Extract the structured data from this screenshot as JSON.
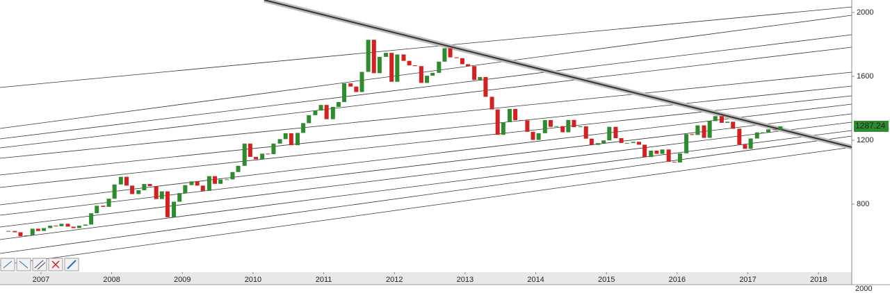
{
  "chart_data": {
    "type": "candlestick",
    "x": [
      2006.54,
      2006.63,
      2006.71,
      2006.79,
      2006.88,
      2006.96,
      2007.04,
      2007.13,
      2007.21,
      2007.29,
      2007.38,
      2007.46,
      2007.54,
      2007.63,
      2007.71,
      2007.79,
      2007.88,
      2007.96,
      2008.04,
      2008.13,
      2008.21,
      2008.29,
      2008.38,
      2008.46,
      2008.54,
      2008.63,
      2008.71,
      2008.79,
      2008.88,
      2008.96,
      2009.04,
      2009.13,
      2009.21,
      2009.29,
      2009.38,
      2009.46,
      2009.54,
      2009.63,
      2009.71,
      2009.79,
      2009.88,
      2009.96,
      2010.04,
      2010.13,
      2010.21,
      2010.29,
      2010.38,
      2010.46,
      2010.54,
      2010.63,
      2010.71,
      2010.79,
      2010.88,
      2010.96,
      2011.04,
      2011.13,
      2011.21,
      2011.29,
      2011.38,
      2011.46,
      2011.54,
      2011.63,
      2011.71,
      2011.79,
      2011.88,
      2011.96,
      2012.04,
      2012.13,
      2012.21,
      2012.29,
      2012.38,
      2012.46,
      2012.54,
      2012.63,
      2012.71,
      2012.79,
      2012.88,
      2012.96,
      2013.04,
      2013.13,
      2013.21,
      2013.29,
      2013.38,
      2013.46,
      2013.54,
      2013.63,
      2013.71,
      2013.79,
      2013.88,
      2013.96,
      2014.04,
      2014.13,
      2014.21,
      2014.29,
      2014.38,
      2014.46,
      2014.54,
      2014.63,
      2014.71,
      2014.79,
      2014.88,
      2014.96,
      2015.04,
      2015.13,
      2015.21,
      2015.29,
      2015.38,
      2015.46,
      2015.54,
      2015.63,
      2015.71,
      2015.79,
      2015.88,
      2015.96,
      2016.04,
      2016.13,
      2016.21,
      2016.29,
      2016.38,
      2016.46,
      2016.54,
      2016.63,
      2016.71,
      2016.79,
      2016.88,
      2016.96,
      2017.04,
      2017.13,
      2017.21,
      2017.29,
      2017.38,
      2017.46
    ],
    "values": [
      632,
      624,
      599,
      604,
      646,
      632,
      650,
      665,
      662,
      677,
      659,
      650,
      665,
      672,
      743,
      790,
      783,
      834,
      923,
      971,
      916,
      863,
      887,
      926,
      913,
      832,
      880,
      718,
      815,
      869,
      919,
      942,
      916,
      883,
      975,
      927,
      954,
      955,
      1001,
      1040,
      1179,
      1096,
      1081,
      1116,
      1113,
      1179,
      1207,
      1244,
      1169,
      1246,
      1307,
      1357,
      1386,
      1421,
      1332,
      1409,
      1439,
      1556,
      1536,
      1502,
      1628,
      1829,
      1620,
      1722,
      1747,
      1566,
      1737,
      1697,
      1669,
      1664,
      1559,
      1604,
      1622,
      1692,
      1776,
      1719,
      1714,
      1676,
      1664,
      1578,
      1596,
      1472,
      1393,
      1234,
      1313,
      1396,
      1326,
      1324,
      1253,
      1202,
      1244,
      1326,
      1284,
      1288,
      1250,
      1327,
      1282,
      1287,
      1210,
      1171,
      1182,
      1199,
      1284,
      1213,
      1183,
      1183,
      1190,
      1172,
      1095,
      1135,
      1115,
      1142,
      1065,
      1061,
      1118,
      1238,
      1233,
      1293,
      1215,
      1320,
      1351,
      1309,
      1316,
      1272,
      1173,
      1146,
      1211,
      1249,
      1249,
      1268,
      1266,
      1287
    ],
    "up_color": "#2e8b2e",
    "down_color": "#d42020",
    "xlim": [
      2006.42,
      2018.47
    ],
    "xticks": [
      2007,
      2008,
      2009,
      2010,
      2011,
      2012,
      2013,
      2014,
      2015,
      2016,
      2017,
      2018
    ],
    "ylim": [
      374,
      2078
    ],
    "yticks": [
      800,
      1200,
      1600,
      2000
    ],
    "last_price": 1287.24,
    "last_price_color": "#2e8b2e",
    "lower_panel_tick": "2000"
  }
}
